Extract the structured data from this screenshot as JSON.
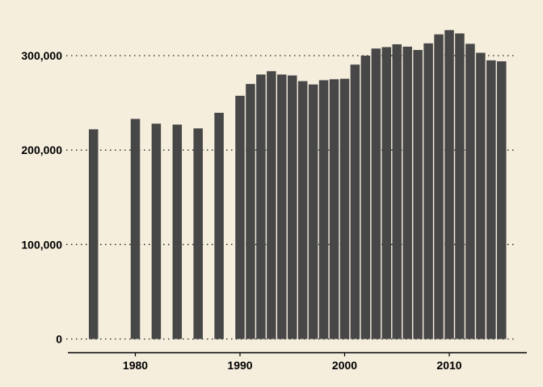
{
  "chart_data": {
    "type": "bar",
    "title": "",
    "xlabel": "",
    "ylabel": "",
    "background": "#F5EEDD",
    "bar_color": "#474747",
    "grid": "horizontal dotted",
    "xlim": [
      1974,
      2017
    ],
    "ylim": [
      0,
      340000
    ],
    "x_ticks": [
      1980,
      1990,
      2000,
      2010
    ],
    "x_tick_labels": [
      "1980",
      "1990",
      "2000",
      "2010"
    ],
    "y_ticks": [
      0,
      100000,
      200000,
      300000
    ],
    "y_tick_labels": [
      "0",
      "100,000",
      "200,000",
      "300,000"
    ],
    "x": [
      1976,
      1980,
      1982,
      1984,
      1986,
      1988,
      1990,
      1991,
      1992,
      1993,
      1994,
      1995,
      1996,
      1997,
      1998,
      1999,
      2000,
      2001,
      2002,
      2003,
      2004,
      2005,
      2006,
      2007,
      2008,
      2009,
      2010,
      2011,
      2012,
      2013,
      2014,
      2015
    ],
    "values": [
      222000,
      233000,
      228000,
      227000,
      223000,
      239500,
      257500,
      270000,
      280000,
      283500,
      280000,
      279000,
      273000,
      269500,
      274000,
      275000,
      275500,
      290500,
      300000,
      307500,
      309000,
      312000,
      309500,
      306000,
      313000,
      322500,
      327000,
      323500,
      312500,
      303000,
      295000,
      294000
    ]
  }
}
